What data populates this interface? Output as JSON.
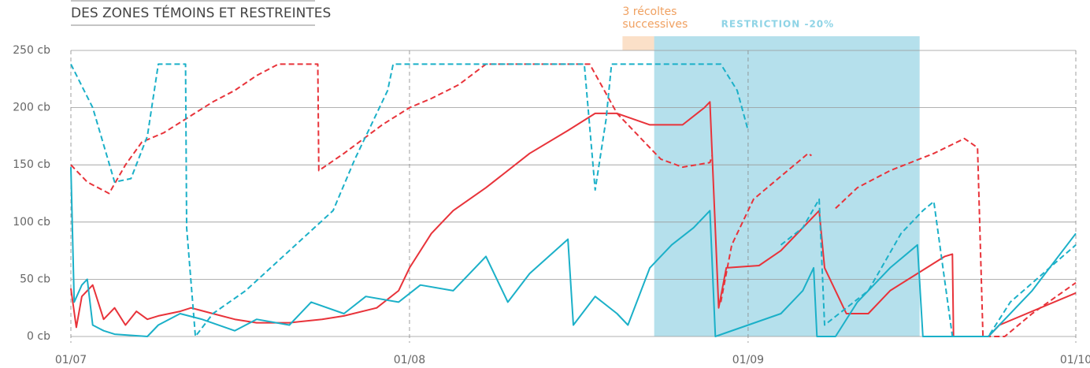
{
  "chart_data": {
    "type": "line",
    "title": "DES ZONES TÉMOINS ET RESTREINTES",
    "xlim": [
      0,
      92
    ],
    "xticks": [
      {
        "value": 0,
        "label": "01/07"
      },
      {
        "value": 31,
        "label": "01/08"
      },
      {
        "value": 62,
        "label": "01/09"
      },
      {
        "value": 92,
        "label": "01/10"
      }
    ],
    "ylim": [
      0,
      250
    ],
    "yticks": [
      {
        "value": 0,
        "label": "0 cb"
      },
      {
        "value": 50,
        "label": "50 cb"
      },
      {
        "value": 100,
        "label": "100 cb"
      },
      {
        "value": 150,
        "label": "150 cb"
      },
      {
        "value": 200,
        "label": "200 cb"
      },
      {
        "value": 250,
        "label": "250 cb"
      }
    ],
    "grid": true,
    "annotations": [
      {
        "lines": [
          "3 récoltes",
          "successives"
        ],
        "x": [
          50.5,
          59.4
        ],
        "color": "#fbe0c8",
        "text_color": "#f0a060"
      },
      {
        "lines": [
          "RESTRICTION -20%"
        ],
        "x": [
          53.4,
          77.7
        ],
        "color": "#b5e0ec",
        "text_color": "#8fd4e6"
      }
    ],
    "series": [
      {
        "color": "#e8333a",
        "dashed": true,
        "x": [
          0,
          1.5,
          3.5,
          5,
          6.5,
          8.5,
          10.5,
          13,
          15,
          17,
          19,
          22.6,
          22.7,
          25,
          28.5,
          31,
          33,
          35.5,
          38,
          42,
          47.5,
          50,
          52,
          54,
          56,
          58.5,
          58.7,
          58.8,
          59.5,
          60.5,
          62.5,
          65,
          67.5,
          67.8,
          68.5,
          70,
          72,
          75,
          79,
          81.8,
          83,
          83.5,
          85.5,
          88,
          92
        ],
        "values": [
          150,
          135,
          125,
          150,
          170,
          178,
          190,
          205,
          215,
          228,
          238,
          238,
          145,
          160,
          185,
          200,
          208,
          220,
          238,
          238,
          238,
          195,
          175,
          155,
          148,
          152,
          158,
          null,
          30,
          80,
          120,
          140,
          160,
          158,
          null,
          112,
          130,
          145,
          160,
          173,
          165,
          0,
          0,
          20,
          47
        ]
      },
      {
        "color": "#e8333a",
        "dashed": false,
        "x": [
          0,
          0.5,
          1,
          2,
          3,
          4,
          5,
          6,
          7,
          8,
          10,
          11,
          13,
          15,
          17,
          20,
          23,
          25,
          28,
          30,
          31,
          33,
          35,
          38,
          42,
          45.5,
          48,
          50,
          53,
          56,
          58,
          58.5,
          59.3,
          60,
          63,
          65,
          67,
          68.5,
          69,
          71,
          73,
          75,
          77.5,
          80,
          80.7,
          80.8,
          84,
          85,
          92
        ],
        "values": [
          42,
          8,
          35,
          45,
          15,
          25,
          10,
          22,
          15,
          18,
          22,
          25,
          20,
          15,
          12,
          12,
          15,
          18,
          25,
          40,
          60,
          90,
          110,
          130,
          160,
          180,
          195,
          195,
          185,
          185,
          200,
          205,
          25,
          60,
          62,
          75,
          95,
          110,
          60,
          20,
          20,
          40,
          55,
          70,
          72,
          0,
          0,
          10,
          38
        ]
      },
      {
        "color": "#1bb0c8",
        "dashed": false,
        "x": [
          0,
          0.3,
          1,
          1.5,
          2,
          3,
          4,
          7,
          8,
          10,
          12,
          15,
          17,
          20,
          22,
          25,
          27,
          30,
          32,
          35,
          37,
          38,
          40,
          42,
          45.5,
          46,
          48,
          50,
          51,
          53,
          55,
          57,
          58.5,
          59,
          62,
          65,
          67,
          68,
          68.3,
          70,
          72,
          75,
          77.5,
          78,
          80,
          84,
          88,
          92
        ],
        "values": [
          148,
          30,
          45,
          50,
          10,
          5,
          2,
          0,
          10,
          20,
          15,
          5,
          15,
          10,
          30,
          20,
          35,
          30,
          45,
          40,
          60,
          70,
          30,
          55,
          85,
          10,
          35,
          20,
          10,
          60,
          80,
          95,
          110,
          0,
          10,
          20,
          40,
          60,
          0,
          0,
          30,
          60,
          80,
          0,
          0,
          0,
          40,
          90
        ]
      },
      {
        "color": "#1bb0c8",
        "dashed": true,
        "x": [
          0,
          2,
          4,
          5.5,
          7,
          8,
          10.5,
          10.6,
          11.4,
          13,
          16,
          20,
          24,
          26,
          27.5,
          29,
          29.5,
          47,
          48,
          49,
          49.5,
          59,
          59.5,
          61,
          62,
          63.8,
          65,
          67,
          68.5,
          69,
          73,
          76,
          78,
          79,
          80.7,
          84,
          86,
          92
        ],
        "values": [
          238,
          200,
          135,
          138,
          175,
          238,
          238,
          95,
          0,
          20,
          40,
          75,
          110,
          155,
          185,
          215,
          238,
          238,
          128,
          190,
          238,
          238,
          238,
          215,
          180,
          null,
          80,
          95,
          120,
          10,
          40,
          90,
          110,
          118,
          0,
          0,
          30,
          80
        ]
      }
    ]
  }
}
